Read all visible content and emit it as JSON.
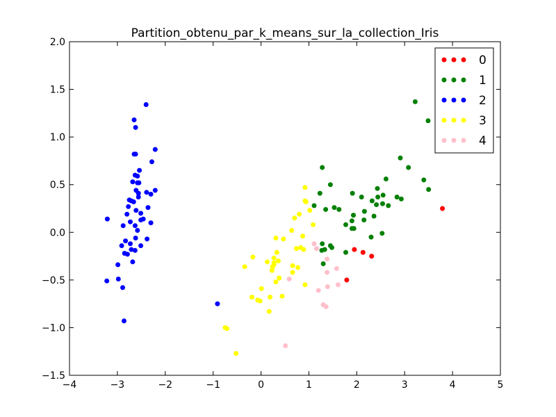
{
  "chart_data": {
    "type": "scatter",
    "title": "Partition_obtenu_par_k_means_sur_la_collection_Iris",
    "xlabel": "",
    "ylabel": "",
    "xlim": [
      -4,
      5
    ],
    "ylim": [
      -1.5,
      2.0
    ],
    "xticks": [
      -4,
      -3,
      -2,
      -1,
      0,
      1,
      2,
      3,
      4,
      5
    ],
    "yticks": [
      -1.5,
      -1.0,
      -0.5,
      0.0,
      0.5,
      1.0,
      1.5,
      2.0
    ],
    "xtick_labels": [
      "−4",
      "−3",
      "−2",
      "−1",
      "0",
      "1",
      "2",
      "3",
      "4",
      "5"
    ],
    "ytick_labels": [
      "−1.5",
      "−1.0",
      "−0.5",
      "0.0",
      "0.5",
      "1.0",
      "1.5",
      "2.0"
    ],
    "grid": false,
    "legend_position": "top-right",
    "series": [
      {
        "name": "0",
        "color": "#ff0000",
        "points": [
          [
            3.79,
            0.25
          ],
          [
            1.95,
            -0.18
          ],
          [
            2.13,
            -0.21
          ],
          [
            2.31,
            -0.25
          ],
          [
            1.79,
            -0.5
          ]
        ]
      },
      {
        "name": "1",
        "color": "#008000",
        "points": [
          [
            3.22,
            1.37
          ],
          [
            3.49,
            1.17
          ],
          [
            2.91,
            0.78
          ],
          [
            3.08,
            0.68
          ],
          [
            1.28,
            0.68
          ],
          [
            2.61,
            0.56
          ],
          [
            3.4,
            0.55
          ],
          [
            1.45,
            0.5
          ],
          [
            2.43,
            0.46
          ],
          [
            3.5,
            0.45
          ],
          [
            1.23,
            0.41
          ],
          [
            1.91,
            0.41
          ],
          [
            2.55,
            0.39
          ],
          [
            2.1,
            0.37
          ],
          [
            2.44,
            0.37
          ],
          [
            2.84,
            0.37
          ],
          [
            2.93,
            0.35
          ],
          [
            2.32,
            0.33
          ],
          [
            2.54,
            0.3
          ],
          [
            2.41,
            0.29
          ],
          [
            1.11,
            0.28
          ],
          [
            2.66,
            0.28
          ],
          [
            1.53,
            0.26
          ],
          [
            1.63,
            0.24
          ],
          [
            1.35,
            0.24
          ],
          [
            2.16,
            0.22
          ],
          [
            1.93,
            0.18
          ],
          [
            2.36,
            0.17
          ],
          [
            2.15,
            0.13
          ],
          [
            1.9,
            0.12
          ],
          [
            1.77,
            0.08
          ],
          [
            1.9,
            0.04
          ],
          [
            1.94,
            0.04
          ],
          [
            2.53,
            -0.01
          ],
          [
            2.3,
            -0.05
          ],
          [
            1.28,
            -0.12
          ],
          [
            1.45,
            -0.14
          ],
          [
            1.48,
            -0.16
          ],
          [
            1.33,
            -0.18
          ],
          [
            1.27,
            -0.19
          ],
          [
            1.77,
            -0.21
          ],
          [
            1.3,
            -0.33
          ]
        ]
      },
      {
        "name": "2",
        "color": "#0000ff",
        "points": [
          [
            -2.4,
            1.34
          ],
          [
            -2.65,
            1.18
          ],
          [
            -2.62,
            1.1
          ],
          [
            -2.65,
            0.82
          ],
          [
            -2.62,
            0.82
          ],
          [
            -2.21,
            0.87
          ],
          [
            -2.28,
            0.74
          ],
          [
            -2.54,
            0.65
          ],
          [
            -2.63,
            0.6
          ],
          [
            -2.58,
            0.59
          ],
          [
            -2.68,
            0.53
          ],
          [
            -2.58,
            0.52
          ],
          [
            -2.55,
            0.52
          ],
          [
            -2.61,
            0.44
          ],
          [
            -2.21,
            0.44
          ],
          [
            -2.39,
            0.42
          ],
          [
            -2.56,
            0.41
          ],
          [
            -2.3,
            0.4
          ],
          [
            -2.56,
            0.37
          ],
          [
            -2.75,
            0.34
          ],
          [
            -2.71,
            0.33
          ],
          [
            -2.66,
            0.32
          ],
          [
            -2.77,
            0.27
          ],
          [
            -2.36,
            0.26
          ],
          [
            -2.61,
            0.23
          ],
          [
            -2.51,
            0.2
          ],
          [
            -2.8,
            0.19
          ],
          [
            -3.21,
            0.14
          ],
          [
            -2.46,
            0.14
          ],
          [
            -2.51,
            0.13
          ],
          [
            -2.73,
            0.11
          ],
          [
            -2.3,
            0.1
          ],
          [
            -2.88,
            0.07
          ],
          [
            -2.63,
            0.07
          ],
          [
            -2.58,
            0.02
          ],
          [
            -2.62,
            -0.06
          ],
          [
            -2.38,
            -0.07
          ],
          [
            -2.83,
            -0.09
          ],
          [
            -2.73,
            -0.12
          ],
          [
            -2.91,
            -0.14
          ],
          [
            -2.51,
            -0.14
          ],
          [
            -2.71,
            -0.18
          ],
          [
            -2.63,
            -0.19
          ],
          [
            -2.85,
            -0.22
          ],
          [
            -2.79,
            -0.23
          ],
          [
            -2.68,
            -0.31
          ],
          [
            -2.99,
            -0.34
          ],
          [
            -2.98,
            -0.49
          ],
          [
            -3.22,
            -0.51
          ],
          [
            -2.89,
            -0.58
          ],
          [
            -0.91,
            -0.75
          ],
          [
            -2.86,
            -0.93
          ]
        ]
      },
      {
        "name": "3",
        "color": "#ffff00",
        "points": [
          [
            0.92,
            0.47
          ],
          [
            0.92,
            0.33
          ],
          [
            0.94,
            0.32
          ],
          [
            0.8,
            0.19
          ],
          [
            1.02,
            0.23
          ],
          [
            0.7,
            0.15
          ],
          [
            1.09,
            0.08
          ],
          [
            0.64,
            0.02
          ],
          [
            0.31,
            -0.06
          ],
          [
            0.47,
            -0.07
          ],
          [
            0.87,
            -0.04
          ],
          [
            0.83,
            -0.16
          ],
          [
            0.74,
            -0.17
          ],
          [
            0.89,
            -0.18
          ],
          [
            0.33,
            -0.21
          ],
          [
            -0.17,
            -0.26
          ],
          [
            0.27,
            -0.27
          ],
          [
            0.13,
            -0.31
          ],
          [
            0.36,
            -0.3
          ],
          [
            0.27,
            -0.32
          ],
          [
            0.27,
            -0.34
          ],
          [
            0.24,
            -0.36
          ],
          [
            0.66,
            -0.35
          ],
          [
            0.77,
            -0.37
          ],
          [
            -0.34,
            -0.36
          ],
          [
            0.23,
            -0.4
          ],
          [
            0.66,
            -0.42
          ],
          [
            0.38,
            -0.48
          ],
          [
            0.31,
            -0.52
          ],
          [
            0.92,
            -0.55
          ],
          [
            0.01,
            -0.59
          ],
          [
            0.44,
            -0.67
          ],
          [
            0.19,
            -0.68
          ],
          [
            -0.19,
            -0.68
          ],
          [
            -0.07,
            -0.71
          ],
          [
            -0.02,
            -0.72
          ],
          [
            0.17,
            -0.83
          ],
          [
            -0.75,
            -1.0
          ],
          [
            -0.71,
            -1.01
          ],
          [
            -0.52,
            -1.27
          ]
        ]
      },
      {
        "name": "4",
        "color": "#ffc0cb",
        "points": [
          [
            1.11,
            -0.12
          ],
          [
            1.16,
            -0.17
          ],
          [
            1.38,
            -0.28
          ],
          [
            1.58,
            -0.38
          ],
          [
            1.38,
            -0.42
          ],
          [
            0.59,
            -0.49
          ],
          [
            1.61,
            -0.55
          ],
          [
            1.39,
            -0.57
          ],
          [
            1.2,
            -0.61
          ],
          [
            1.3,
            -0.76
          ],
          [
            1.36,
            -0.78
          ],
          [
            0.51,
            -1.19
          ]
        ]
      }
    ]
  }
}
